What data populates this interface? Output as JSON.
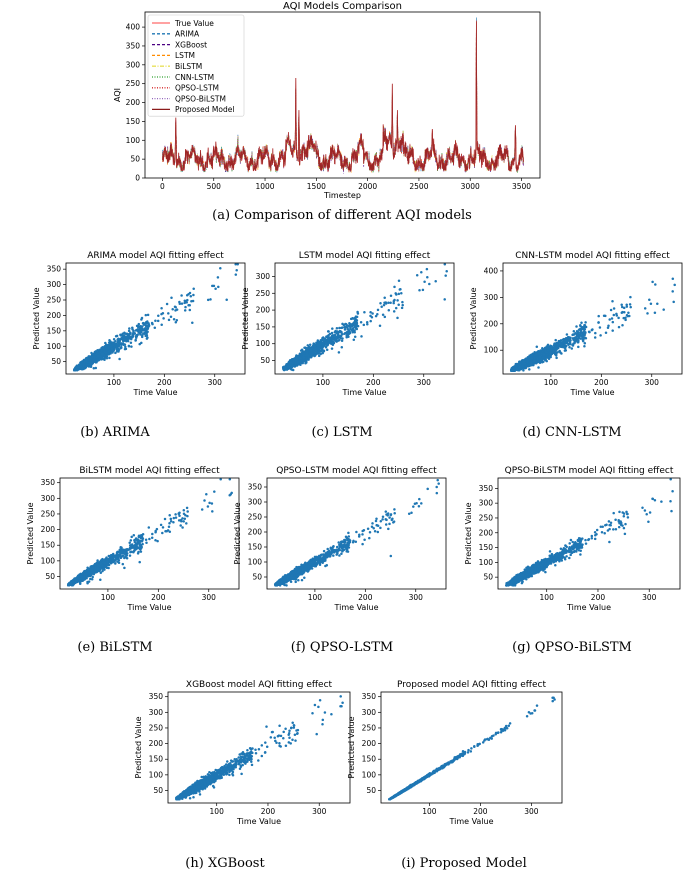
{
  "colors": {
    "scatter": "#1f77b4",
    "true_value": "#ff6b6b",
    "proposed": "#8b1a1a",
    "arima": "#1f77b4",
    "xgboost": "#4b0082",
    "lstm": "#ff8c00",
    "bilstm": "#e8e05a",
    "cnn_lstm": "#2ca02c",
    "qpso_lstm": "#d62728",
    "qpso_bilstm": "#9467bd"
  },
  "captions": {
    "a": "(a) Comparison of different AQI models",
    "b": "(b) ARIMA",
    "c": "(c) LSTM",
    "d": "(d) CNN-LSTM",
    "e": "(e) BiLSTM",
    "f": "(f) QPSO-LSTM",
    "g": "(g) QPSO-BiLSTM",
    "h": "(h) XGBoost",
    "i": "(i) Proposed Model"
  },
  "chart_data": [
    {
      "id": "a",
      "type": "line",
      "title": "AQI Models Comparison",
      "xlabel": "Timestep",
      "ylabel": "AQI",
      "xlim": [
        -170,
        3680
      ],
      "ylim": [
        0,
        440
      ],
      "xticks": [
        0,
        500,
        1000,
        1500,
        2000,
        2500,
        3000,
        3500
      ],
      "yticks": [
        0,
        50,
        100,
        150,
        200,
        250,
        300,
        350,
        400
      ],
      "legend_position": "upper-left",
      "series": [
        {
          "name": "True Value",
          "style": "solid"
        },
        {
          "name": "ARIMA",
          "style": "dashed"
        },
        {
          "name": "XGBoost",
          "style": "dashed"
        },
        {
          "name": "LSTM",
          "style": "dashed"
        },
        {
          "name": "BiLSTM",
          "style": "dashdot"
        },
        {
          "name": "CNN-LSTM",
          "style": "dotted"
        },
        {
          "name": "QPSO-LSTM",
          "style": "dotted"
        },
        {
          "name": "QPSO-BiLSTM",
          "style": "dotted"
        },
        {
          "name": "Proposed Model",
          "style": "solid"
        }
      ],
      "n_points": 3520,
      "peaks": [
        {
          "x": 130,
          "y": 160
        },
        {
          "x": 1300,
          "y": 265
        },
        {
          "x": 1330,
          "y": 180
        },
        {
          "x": 2240,
          "y": 250
        },
        {
          "x": 2290,
          "y": 180
        },
        {
          "x": 2630,
          "y": 130
        },
        {
          "x": 3060,
          "y": 415
        },
        {
          "x": 3440,
          "y": 140
        }
      ]
    },
    {
      "id": "b",
      "type": "scatter",
      "title": "ARIMA model AQI fitting effect",
      "xlabel": "Time Value",
      "ylabel": "Predicted Value",
      "xlim": [
        5,
        360
      ],
      "ylim": [
        10,
        370
      ],
      "xticks": [
        100,
        200,
        300
      ],
      "yticks": [
        50,
        100,
        150,
        200,
        250,
        300,
        350
      ],
      "fit": {
        "slope": 0.98,
        "intercept": 2,
        "noise": 0.16
      },
      "n_points": 1900
    },
    {
      "id": "c",
      "type": "scatter",
      "title": "LSTM model AQI fitting effect",
      "xlabel": "Time Value",
      "ylabel": "Predicted Value",
      "xlim": [
        5,
        360
      ],
      "ylim": [
        10,
        340
      ],
      "xticks": [
        100,
        200,
        300
      ],
      "yticks": [
        50,
        100,
        150,
        200,
        250,
        300
      ],
      "fit": {
        "slope": 0.92,
        "intercept": 5,
        "noise": 0.16
      },
      "n_points": 1900
    },
    {
      "id": "d",
      "type": "scatter",
      "title": "CNN-LSTM model AQI fitting effect",
      "xlabel": "Time Value",
      "ylabel": "Predicted Value",
      "xlim": [
        5,
        360
      ],
      "ylim": [
        10,
        430
      ],
      "xticks": [
        100,
        200,
        300
      ],
      "yticks": [
        100,
        200,
        300,
        400
      ],
      "fit": {
        "slope": 0.95,
        "intercept": 4,
        "noise": 0.2
      },
      "n_points": 1900
    },
    {
      "id": "e",
      "type": "scatter",
      "title": "BiLSTM model AQI fitting effect",
      "xlabel": "Time Value",
      "ylabel": "Predicted Value",
      "xlim": [
        5,
        360
      ],
      "ylim": [
        10,
        365
      ],
      "xticks": [
        100,
        200,
        300
      ],
      "yticks": [
        50,
        100,
        150,
        200,
        250,
        300,
        350
      ],
      "fit": {
        "slope": 0.95,
        "intercept": 3,
        "noise": 0.13
      },
      "n_points": 1900
    },
    {
      "id": "f",
      "type": "scatter",
      "title": "QPSO-LSTM model AQI fitting effect",
      "xlabel": "Time Value",
      "ylabel": "Predicted Value",
      "xlim": [
        5,
        360
      ],
      "ylim": [
        10,
        380
      ],
      "xticks": [
        100,
        200,
        300
      ],
      "yticks": [
        50,
        100,
        150,
        200,
        250,
        300,
        350
      ],
      "fit": {
        "slope": 0.96,
        "intercept": 3,
        "noise": 0.13
      },
      "n_points": 1900
    },
    {
      "id": "g",
      "type": "scatter",
      "title": "QPSO-BiLSTM model AQI fitting effect",
      "xlabel": "Time Value",
      "ylabel": "Predicted Value",
      "xlim": [
        5,
        360
      ],
      "ylim": [
        10,
        385
      ],
      "xticks": [
        100,
        200,
        300
      ],
      "yticks": [
        50,
        100,
        150,
        200,
        250,
        300,
        350
      ],
      "fit": {
        "slope": 0.96,
        "intercept": 3,
        "noise": 0.14
      },
      "n_points": 1900
    },
    {
      "id": "h",
      "type": "scatter",
      "title": "XGBoost model AQI fitting effect",
      "xlabel": "Time Value",
      "ylabel": "Predicted Value",
      "xlim": [
        5,
        360
      ],
      "ylim": [
        10,
        365
      ],
      "xticks": [
        100,
        200,
        300
      ],
      "yticks": [
        50,
        100,
        150,
        200,
        250,
        300,
        350
      ],
      "fit": {
        "slope": 0.96,
        "intercept": 3,
        "noise": 0.14
      },
      "n_points": 1900
    },
    {
      "id": "i",
      "type": "scatter",
      "title": "Proposed model AQI fitting effect",
      "xlabel": "Time Value",
      "ylabel": "Predicted Value",
      "xlim": [
        5,
        360
      ],
      "ylim": [
        10,
        365
      ],
      "xticks": [
        100,
        200,
        300
      ],
      "yticks": [
        50,
        100,
        150,
        200,
        250,
        300,
        350
      ],
      "fit": {
        "slope": 1.0,
        "intercept": 0,
        "noise": 0.025
      },
      "n_points": 1500
    }
  ]
}
